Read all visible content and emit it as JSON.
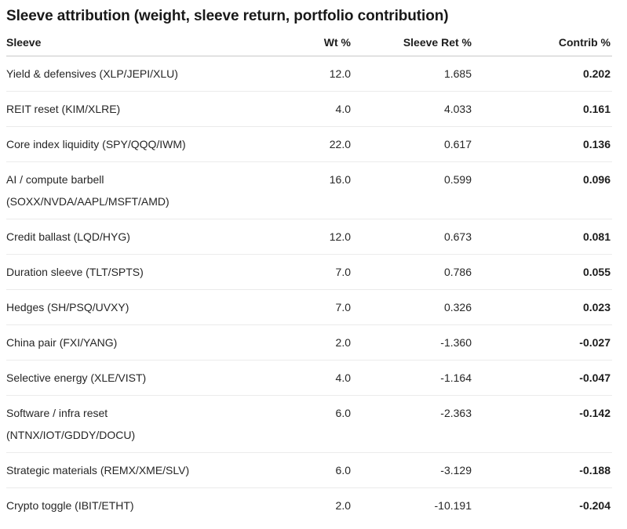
{
  "title": "Sleeve attribution (weight, sleeve return, portfolio contribution)",
  "chart_data": {
    "type": "table",
    "title": "Sleeve attribution (weight, sleeve return, portfolio contribution)",
    "columns": [
      "Sleeve",
      "Wt %",
      "Sleeve Ret %",
      "Contrib %"
    ],
    "rows": [
      {
        "sleeve": "Yield & defensives (XLP/JEPI/XLU)",
        "wt_pct": "12.0",
        "sleeve_ret_pct": "1.685",
        "contrib_pct": "0.202"
      },
      {
        "sleeve": "REIT reset (KIM/XLRE)",
        "wt_pct": "4.0",
        "sleeve_ret_pct": "4.033",
        "contrib_pct": "0.161"
      },
      {
        "sleeve": "Core index liquidity (SPY/QQQ/IWM)",
        "wt_pct": "22.0",
        "sleeve_ret_pct": "0.617",
        "contrib_pct": "0.136"
      },
      {
        "sleeve": "AI / compute barbell\n(SOXX/NVDA/AAPL/MSFT/AMD)",
        "wt_pct": "16.0",
        "sleeve_ret_pct": "0.599",
        "contrib_pct": "0.096"
      },
      {
        "sleeve": "Credit ballast (LQD/HYG)",
        "wt_pct": "12.0",
        "sleeve_ret_pct": "0.673",
        "contrib_pct": "0.081"
      },
      {
        "sleeve": "Duration sleeve (TLT/SPTS)",
        "wt_pct": "7.0",
        "sleeve_ret_pct": "0.786",
        "contrib_pct": "0.055"
      },
      {
        "sleeve": "Hedges (SH/PSQ/UVXY)",
        "wt_pct": "7.0",
        "sleeve_ret_pct": "0.326",
        "contrib_pct": "0.023"
      },
      {
        "sleeve": "China pair (FXI/YANG)",
        "wt_pct": "2.0",
        "sleeve_ret_pct": "-1.360",
        "contrib_pct": "-0.027"
      },
      {
        "sleeve": "Selective energy (XLE/VIST)",
        "wt_pct": "4.0",
        "sleeve_ret_pct": "-1.164",
        "contrib_pct": "-0.047"
      },
      {
        "sleeve": "Software / infra reset\n(NTNX/IOT/GDDY/DOCU)",
        "wt_pct": "6.0",
        "sleeve_ret_pct": "-2.363",
        "contrib_pct": "-0.142"
      },
      {
        "sleeve": "Strategic materials (REMX/XME/SLV)",
        "wt_pct": "6.0",
        "sleeve_ret_pct": "-3.129",
        "contrib_pct": "-0.188"
      },
      {
        "sleeve": "Crypto toggle (IBIT/ETHT)",
        "wt_pct": "2.0",
        "sleeve_ret_pct": "-10.191",
        "contrib_pct": "-0.204"
      }
    ]
  },
  "colors": {
    "background": "#ffffff",
    "title_text": "#191919",
    "body_text": "#262626",
    "header_rule": "#c9c9c9",
    "row_rule": "#ebebeb"
  }
}
